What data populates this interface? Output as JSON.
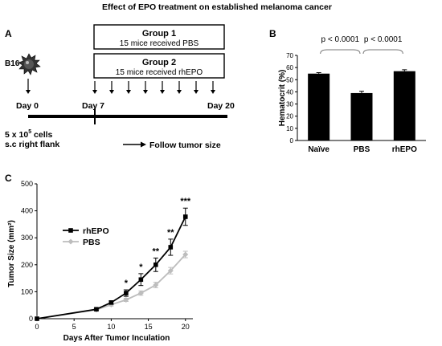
{
  "figure": {
    "title": "Effect of EPO treatment on established melanoma cancer",
    "panel_a": {
      "letter": "A",
      "group1": {
        "title": "Group 1",
        "subtitle": "15 mice received PBS"
      },
      "group2": {
        "title": "Group 2",
        "subtitle": "15 mice received rhEPO"
      },
      "cell_line": "B16",
      "day0": "Day 0",
      "day7": "Day 7",
      "day20": "Day 20",
      "cells_prefix": "5 x 10",
      "cells_exp": "5",
      "cells_suffix": " cells",
      "site": "s.c right flank",
      "follow": "Follow tumor size"
    }
  },
  "chart_data": [
    {
      "panel": "B",
      "type": "bar",
      "ylabel": "Hematocrit (%)",
      "ylim": [
        0,
        70
      ],
      "yticks": [
        0,
        10,
        20,
        30,
        40,
        50,
        60,
        70
      ],
      "categories": [
        "Naïve",
        "PBS",
        "rhEPO"
      ],
      "values": [
        55,
        39,
        57
      ],
      "errors": [
        0.8,
        1.5,
        1.2
      ],
      "bar_color": "#000000",
      "annotations": [
        {
          "from": 0,
          "to": 1,
          "text": "p < 0.0001"
        },
        {
          "from": 1,
          "to": 2,
          "text": "p < 0.0001"
        }
      ]
    },
    {
      "panel": "C",
      "type": "line",
      "xlabel": "Days After Tumor Inculation",
      "ylabel": "Tumor Size (mm²)",
      "xlim": [
        0,
        21
      ],
      "ylim": [
        0,
        500
      ],
      "xticks": [
        0,
        5,
        10,
        15,
        20
      ],
      "yticks": [
        0,
        100,
        200,
        300,
        400,
        500
      ],
      "legend_position": "center-left",
      "series": [
        {
          "name": "rhEPO",
          "color": "#000000",
          "marker": "square",
          "points": [
            {
              "x": 0,
              "y": 0,
              "err": 0
            },
            {
              "x": 8,
              "y": 35,
              "err": 3
            },
            {
              "x": 10,
              "y": 60,
              "err": 6
            },
            {
              "x": 12,
              "y": 95,
              "err": 12
            },
            {
              "x": 14,
              "y": 145,
              "err": 22
            },
            {
              "x": 16,
              "y": 200,
              "err": 25
            },
            {
              "x": 18,
              "y": 265,
              "err": 30
            },
            {
              "x": 20,
              "y": 378,
              "err": 32
            }
          ]
        },
        {
          "name": "PBS",
          "color": "#bdbdbd",
          "marker": "diamond",
          "points": [
            {
              "x": 0,
              "y": 0,
              "err": 0
            },
            {
              "x": 8,
              "y": 33,
              "err": 3
            },
            {
              "x": 10,
              "y": 52,
              "err": 5
            },
            {
              "x": 12,
              "y": 70,
              "err": 6
            },
            {
              "x": 14,
              "y": 95,
              "err": 8
            },
            {
              "x": 16,
              "y": 125,
              "err": 10
            },
            {
              "x": 18,
              "y": 178,
              "err": 12
            },
            {
              "x": 20,
              "y": 238,
              "err": 12
            }
          ]
        }
      ],
      "significance": [
        {
          "x": 12,
          "label": "*"
        },
        {
          "x": 14,
          "label": "*"
        },
        {
          "x": 16,
          "label": "**"
        },
        {
          "x": 18,
          "label": "**"
        },
        {
          "x": 20,
          "label": "***"
        }
      ]
    }
  ]
}
